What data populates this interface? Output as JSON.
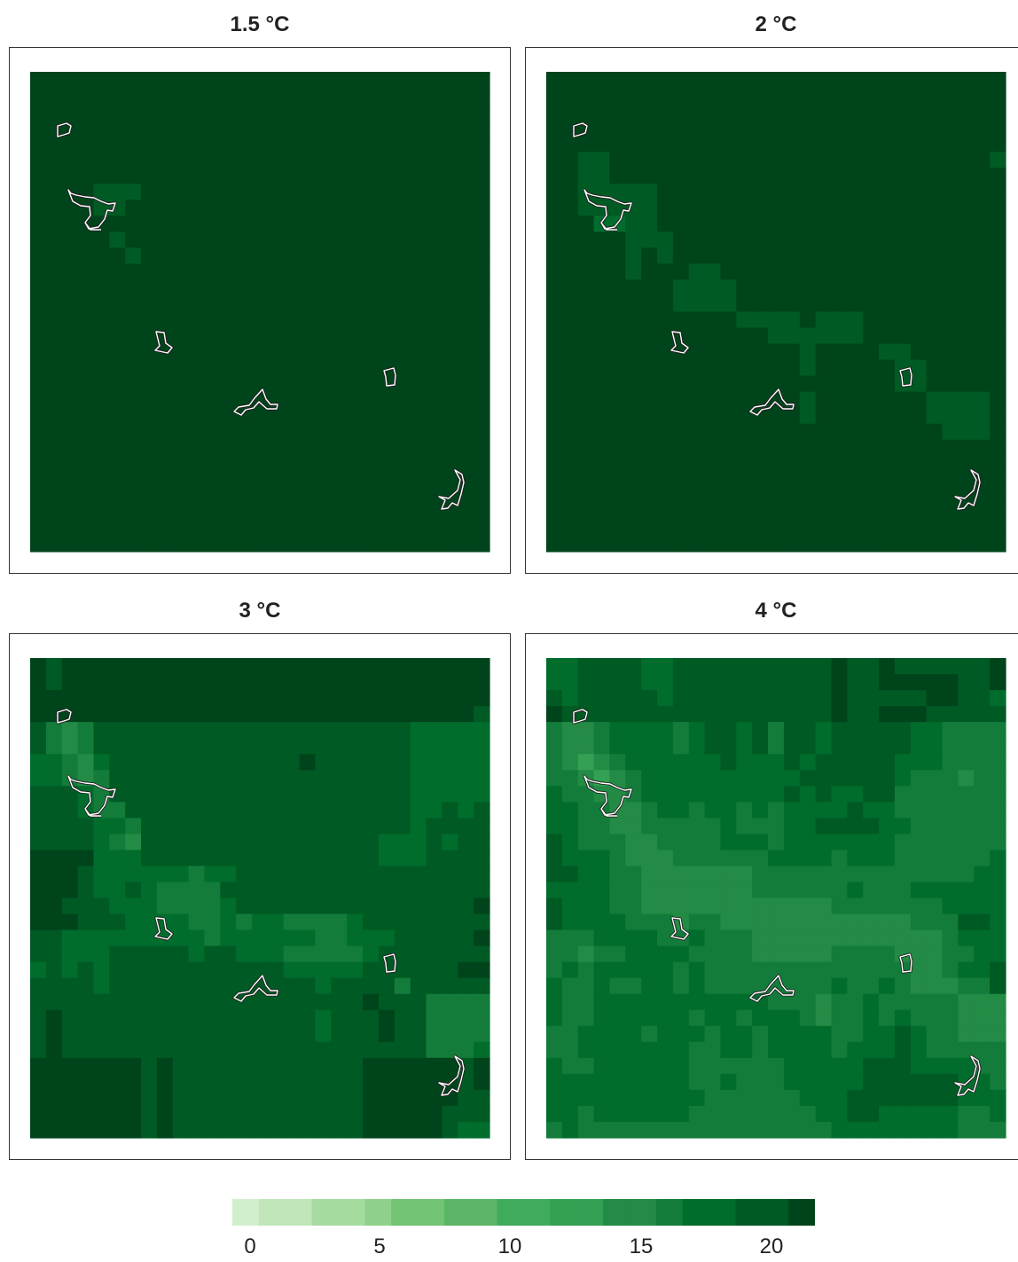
{
  "chart_data": {
    "type": "heatmap",
    "panels": [
      {
        "title": "1.5 °C",
        "grid": [
          "22 22 22 22 22 22 22 22 22 22 22 22 22 22 22 22 22 22 22 22 22 22 22 22 22 22 22 22 22",
          "22 22 22 22 22 22 22 22 22 22 22 22 22 22 22 22 22 22 22 22 22 22 22 22 22 22 22 22 22",
          "22 22 22 22 22 22 22 22 22 22 22 22 22 22 22 22 22 22 22 22 22 22 22 22 22 22 22 22 22",
          "22 22 22 22 22 22 22 22 22 22 22 22 22 22 22 22 22 22 22 22 22 22 22 22 22 22 22 22 22",
          "22 22 22 22 22 22 22 22 22 22 22 22 22 22 22 22 22 22 22 22 22 22 22 22 22 22 22 22 22",
          "22 22 22 22 22 22 22 22 22 22 22 22 22 22 22 22 22 22 22 22 22 22 22 22 22 22 22 22 22",
          "22 22 22 22 22 22 22 22 22 22 22 22 22 22 22 22 22 22 22 22 22 22 22 22 22 22 22 22 22",
          "22 22 22 22 21 21 21 22 22 22 22 22 22 22 22 22 22 22 22 22 22 22 22 22 22 22 22 22 22",
          "22 22 22 22 21 21 22 22 22 22 22 22 22 22 22 22 22 22 22 22 22 22 22 22 22 22 22 22 22",
          "22 22 22 22 22 22 22 22 22 22 22 22 22 22 22 22 22 22 22 22 22 22 22 22 22 22 22 22 22",
          "22 22 22 22 22 21 22 22 22 22 22 22 22 22 22 22 22 22 22 22 22 22 22 22 22 22 22 22 22",
          "22 22 22 22 22 22 21 22 22 22 22 22 22 22 22 22 22 22 22 22 22 22 22 22 22 22 22 22 22",
          "22 22 22 22 22 22 22 22 22 22 22 22 22 22 22 22 22 22 22 22 22 22 22 22 22 22 22 22 22",
          "22 22 22 22 22 22 22 22 22 22 22 22 22 22 22 22 22 22 22 22 22 22 22 22 22 22 22 22 22",
          "22 22 22 22 22 22 22 22 22 22 22 22 22 22 22 22 22 22 22 22 22 22 22 22 22 22 22 22 22",
          "22 22 22 22 22 22 22 22 22 22 22 22 22 22 22 22 22 22 22 22 22 22 22 22 22 22 22 22 22",
          "22 22 22 22 22 22 22 22 22 22 22 22 22 22 22 22 22 22 22 22 22 22 22 22 22 22 22 22 22",
          "22 22 22 22 22 22 22 22 22 22 22 22 22 22 22 22 22 22 22 22 22 22 22 22 22 22 22 22 22",
          "22 22 22 22 22 22 22 22 22 22 22 22 22 22 22 22 22 22 22 22 22 22 22 22 22 22 22 22 22",
          "22 22 22 22 22 22 22 22 22 22 22 22 22 22 22 22 22 22 22 22 22 22 22 22 22 22 22 22 22",
          "22 22 22 22 22 22 22 22 22 22 22 22 22 22 22 22 22 22 22 22 22 22 22 22 22 22 22 22 22",
          "22 22 22 22 22 22 22 22 22 22 22 22 22 22 22 22 22 22 22 22 22 22 22 22 22 22 22 22 22",
          "22 22 22 22 22 22 22 22 22 22 22 22 22 22 22 22 22 22 22 22 22 22 22 22 22 22 22 22 22",
          "22 22 22 22 22 22 22 22 22 22 22 22 22 22 22 22 22 22 22 22 22 22 22 22 22 22 22 22 22",
          "22 22 22 22 22 22 22 22 22 22 22 22 22 22 22 22 22 22 22 22 22 22 22 22 22 22 22 22 22",
          "22 22 22 22 22 22 22 22 22 22 22 22 22 22 22 22 22 22 22 22 22 22 22 22 22 22 22 22 22",
          "22 22 22 22 22 22 22 22 22 22 22 22 22 22 22 22 22 22 22 22 22 22 22 22 22 22 22 22 22",
          "22 22 22 22 22 22 22 22 22 22 22 22 22 22 22 22 22 22 22 22 22 22 22 22 22 22 22 22 22",
          "22 22 22 22 22 22 22 22 22 22 22 22 22 22 22 22 22 22 22 22 22 22 22 22 22 22 22 22 22",
          "22 22 22 22 22 22 22 22 22 22 22 22 22 22 22 22 22 22 22 22 22 22 22 22 22 22 22 22 22"
        ]
      },
      {
        "title": "2 °C",
        "grid": [
          "22 22 22 22 22 22 22 22 22 22 22 22 22 22 22 22 22 22 22 22 22 22 22 22 22 22 22 22 22",
          "22 22 22 22 22 22 22 22 22 22 22 22 22 22 22 22 22 22 22 22 22 22 22 22 22 22 22 22 22",
          "22 22 22 22 22 22 22 22 22 22 22 22 22 22 22 22 22 22 22 22 22 22 22 22 22 22 22 22 22",
          "22 22 22 22 22 22 22 22 22 22 22 22 22 22 22 22 22 22 22 22 22 22 22 22 22 22 22 22 22",
          "22 22 22 22 22 22 22 22 22 22 22 22 22 22 22 22 22 22 22 22 22 22 22 22 22 22 22 22 22",
          "22 22 20 21 22 22 22 22 22 22 22 22 22 22 22 22 22 22 22 22 22 22 22 22 22 22 22 22 21",
          "22 22 20 21 22 22 22 22 22 22 22 22 22 22 22 22 22 22 22 22 22 22 22 22 22 22 22 22 22",
          "22 22 20 20 20 20 21 22 22 22 22 22 22 22 22 22 22 22 22 22 22 22 22 22 22 22 22 22 22",
          "22 22 20 20 20 20 21 22 22 22 22 22 22 22 22 22 22 22 22 22 22 22 22 22 22 22 22 22 22",
          "22 22 22 19 19 20 21 22 22 22 22 22 22 22 22 22 22 22 22 22 22 22 22 22 22 22 22 22 22",
          "22 22 22 22 22 21 21 21 22 22 22 22 22 22 22 22 22 22 22 22 22 22 22 22 22 22 22 22 22",
          "22 22 22 22 22 21 22 21 22 22 22 22 22 22 22 22 22 22 22 22 22 22 22 22 22 22 22 22 22",
          "22 22 22 22 22 21 22 22 22 21 21 22 22 22 22 22 22 22 22 22 22 22 22 22 22 22 22 22 22",
          "22 22 22 22 22 22 22 22 21 21 21 21 22 22 22 22 22 22 22 22 22 22 22 22 22 22 22 22 22",
          "22 22 22 22 22 22 22 22 21 21 21 21 22 22 22 22 22 22 22 22 22 22 22 22 22 22 22 22 22",
          "22 22 22 22 22 22 22 22 22 22 22 22 21 21 21 21 22 21 21 21 22 22 22 22 22 22 22 22 22",
          "22 22 22 22 22 22 22 22 22 22 22 22 22 22 21 21 21 21 21 21 22 22 22 22 22 22 22 22 22",
          "22 22 22 22 22 22 22 22 22 22 22 22 22 22 22 22 21 22 22 22 22 21 21 22 22 22 22 22 22",
          "22 22 22 22 22 22 22 22 22 22 22 22 22 22 22 22 21 22 22 22 22 22 21 21 22 22 22 22 22",
          "22 22 22 22 22 22 22 22 22 22 22 22 22 22 22 22 22 22 22 22 22 22 21 21 22 22 22 22 22",
          "22 22 22 22 22 22 22 22 22 22 22 22 22 22 22 22 21 22 22 22 22 22 22 22 21 21 21 21 22",
          "22 22 22 22 22 22 22 22 22 22 22 22 22 22 22 22 21 22 22 22 22 22 22 22 21 21 21 21 22",
          "22 22 22 22 22 22 22 22 22 22 22 22 22 22 22 22 22 22 22 22 22 22 22 22 22 21 21 21 22",
          "22 22 22 22 22 22 22 22 22 22 22 22 22 22 22 22 22 22 22 22 22 22 22 22 22 22 22 22 22",
          "22 22 22 22 22 22 22 22 22 22 22 22 22 22 22 22 22 22 22 22 22 22 22 22 22 22 22 22 22",
          "22 22 22 22 22 22 22 22 22 22 22 22 22 22 22 22 22 22 22 22 22 22 22 22 22 22 22 22 22",
          "22 22 22 22 22 22 22 22 22 22 22 22 22 22 22 22 22 22 22 22 22 22 22 22 22 22 22 22 22",
          "22 22 22 22 22 22 22 22 22 22 22 22 22 22 22 22 22 22 22 22 22 22 22 22 22 22 22 22 22",
          "22 22 22 22 22 22 22 22 22 22 22 22 22 22 22 22 22 22 22 22 22 22 22 22 22 22 22 22 22",
          "22 22 22 22 22 22 22 22 22 22 22 22 22 22 22 22 22 22 22 22 22 22 22 22 22 22 22 22 22"
        ]
      },
      {
        "title": "3 °C",
        "grid": [
          "22 21 22 22 22 22 22 22 22 22 22 22 22 22 22 22 22 22 22 22 22 22 22 22 22 22 22 22 22",
          "22 21 22 22 22 22 22 22 22 22 22 22 22 22 22 22 22 22 22 22 22 22 22 22 22 22 22 22 22",
          "22 22 22 22 22 22 22 22 22 22 22 22 22 22 22 22 22 22 22 22 22 22 22 22 22 22 22 22 22",
          "22 22 22 22 22 22 22 22 22 22 22 22 22 22 22 22 22 22 22 22 22 22 22 22 22 22 22 22 21",
          "20 17 15 16 21 21 20 21 21 21 21 21 21 21 20 21 21 21 20 21 21 21 21 20 19 19 19 18 18",
          "20 17 15 16 21 21 20 21 21 21 21 21 21 21 20 21 21 21 20 21 21 21 21 20 19 19 19 18 18",
          "19 18 17 15 18 20 21 20 21 21 21 21 21 21 21 21 21 22 21 21 21 21 21 20 18 18 18 18 19",
          "19 19 17 14 17 20 21 21 21 21 21 21 21 21 21 21 21 21 21 21 21 21 21 20 18 18 18 18 19",
          "21 21 20 18 17 20 21 21 21 20 21 20 21 21 21 21 21 21 21 21 21 21 21 21 19 18 19 18 19",
          "21 20 20 19 17 17 20 21 21 21 20 20 20 21 21 21 21 21 21 21 21 21 21 21 19 19 20 19 20",
          "21 20 20 20 19 18 17 20 20 20 20 20 21 21 21 21 21 21 21 21 21 21 21 21 19 20 20 20 20",
          "21 21 20 20 19 17 15 20 20 20 20 20 21 21 21 21 21 21 21 21 21 20 19 19 19 20 19 20 20",
          "22 22 22 22 19 18 19 21 21 21 21 21 21 21 21 21 21 21 21 21 21 20 19 19 19 21 20 20 20",
          "22 22 22 21 18 18 18 19 18 19 17 18 19 21 21 21 21 21 21 21 21 21 21 21 21 21 21 20 20",
          "22 22 22 21 18 19 20 18 16 16 16 17 20 21 21 21 21 21 21 21 21 21 21 21 20 21 20 21 21",
          "22 22 21 21 20 19 19 19 16 16 16 16 19 20 20 20 20 20 20 21 21 20 21 21 21 21 21 21 22",
          "22 22 22 21 20 20 19 18 19 19 17 17 18 17 18 18 17 17 17 17 18 20 21 21 20 21 21 21 21",
          "20 20 19 19 19 19 19 18 19 19 18 17 18 18 19 18 18 18 17 17 19 18 18 20 20 20 20 21 22",
          "20 20 18 19 18 21 21 21 21 21 19 21 21 19 19 18 17 17 17 17 17 19 20 21 20 21 21 21 21",
          "19 20 19 20 18 21 21 21 21 21 21 21 21 20 21 20 19 19 18 19 19 20 20 21 21 21 21 22 22",
          "20 20 20 20 19 20 21 21 21 21 21 20 21 20 21 21 21 20 19 21 21 21 20 17 20 21 21 21 21",
          "20 21 20 20 21 21 21 21 21 21 20 21 21 21 20 21 21 20 20 21 21 22 21 20 21 17 17 17 17",
          "21 22 21 21 21 21 21 21 21 21 21 21 21 21 21 21 21 21 19 20 21 21 22 21 21 17 17 17 17",
          "21 22 21 21 21 21 21 21 21 21 21 21 21 21 21 21 21 21 19 20 21 21 22 21 21 17 17 17 17",
          "21 22 21 21 21 21 21 21 21 21 21 21 21 21 21 21 21 21 21 21 21 21 21 21 21 17 17 17 18",
          "22 22 22 22 22 22 22 21 22 21 21 21 21 20 21 21 21 21 21 21 21 22 22 22 22 22 22 21 22",
          "22 22 22 22 22 22 22 21 22 21 21 21 21 20 21 21 21 21 21 21 21 22 22 22 22 22 22 21 22",
          "22 22 22 22 22 22 22 21 22 21 21 21 21 20 21 21 21 21 21 21 21 22 22 22 22 22 22 21 21",
          "22 22 22 22 22 22 22 21 22 21 21 21 21 20 21 21 21 21 21 21 21 22 22 22 22 22 21 20 20",
          "22 22 22 22 22 22 22 21 22 21 21 21 21 20 21 21 21 21 21 21 21 22 22 22 22 22 20 19 19"
        ]
      },
      {
        "title": "4 °C",
        "grid": [
          "19 19 21 20 20 21 19 19 20 21 21 21 20 21 21 21 20 21 22 21 21 22 21 21 21 21 21 21 22",
          "19 19 21 20 21 21 19 19 20 21 21 21 20 21 21 21 20 21 22 21 21 22 22 22 22 22 21 21 22",
          "20 19 20 20 21 21 20 19 20 21 21 21 20 21 21 21 20 21 22 21 21 21 21 21 22 22 21 20 19",
          "22 21 20 20 20 21 21 21 21 21 21 21 21 21 21 21 20 21 22 21 21 22 22 22 21 21 21 20 20",
          "16 15 14 16 19 18 19 18 17 19 20 20 19 20 17 20 20 19 20 21 21 20 20 19 18 16 16 17 17",
          "16 15 14 16 19 18 19 18 17 19 20 20 19 20 17 20 20 19 20 21 21 20 20 19 18 16 16 17 17",
          "16 15 13 14 17 19 19 19 19 19 19 20 18 18 19 20 19 20 21 21 21 20 18 18 18 16 16 16 16",
          "17 16 14 13 15 17 18 18 18 19 19 18 18 18 18 19 20 20 20 20 21 20 19 17 16 16 15 16 17",
          "18 17 16 14 15 17 19 18 19 19 19 19 19 19 19 20 19 20 19 18 20 20 17 16 16 16 16 16 17",
          "18 18 17 16 14 15 17 18 18 17 18 18 17 18 17 18 19 19 19 20 19 18 16 16 16 16 17 17 16",
          "19 18 17 17 15 15 16 17 17 17 17 18 17 16 16 19 19 21 21 21 21 19 18 17 17 17 17 17 16",
          "20 19 17 17 16 14 14 17 17 17 17 18 18 18 16 19 18 18 18 18 18 18 16 16 16 17 17 17 17",
          "21 19 19 18 16 14 14 15 16 17 17 16 16 16 18 18 18 18 17 18 18 18 17 16 16 16 17 17 18",
          "20 20 18 18 17 16 15 15 14 14 14 15 15 17 16 17 17 16 17 16 16 17 17 17 17 17 17 18 18",
          "19 19 18 18 17 16 15 15 14 14 14 14 15 16 17 17 17 17 17 18 17 17 17 18 18 18 18 18 18",
          "20 19 19 19 17 16 15 15 14 14 14 14 15 15 15 15 15 15 16 17 17 17 17 17 17 18 18 18 18",
          "20 19 18 19 18 16 16 16 15 16 16 15 15 15 15 14 14 15 15 15 15 14 15 16 16 17 20 20 19",
          "16 16 17 18 18 18 18 17 17 18 17 16 16 15 15 14 14 15 15 15 15 15 14 14 15 17 19 19 19",
          "16 17 15 16 17 18 18 18 18 17 17 16 16 15 15 15 15 15 16 16 16 16 14 14 15 16 17 18 18",
          "17 18 17 18 18 18 18 18 17 18 17 17 16 17 16 16 16 16 16 17 17 16 16 15 14 16 18 18 20",
          "18 17 17 18 17 17 18 18 17 18 17 17 17 17 17 16 17 16 18 17 17 18 16 15 15 15 17 17 20",
          "18 17 17 18 18 18 18 18 18 18 18 18 18 18 17 17 17 15 16 17 19 17 17 17 16 16 15 14 15",
          "18 17 17 18 18 18 18 18 18 17 18 18 17 18 18 18 17 15 16 17 19 17 18 17 16 16 15 14 15",
          "17 17 18 19 18 18 17 18 18 18 16 18 18 17 18 18 18 18 16 17 18 18 20 18 17 16 15 15 15",
          "17 17 18 19 18 18 18 18 18 17 16 18 18 17 18 18 18 18 17 18 18 19 20 19 17 17 16 16 16",
          "18 17 17 18 18 18 18 18 18 17 16 17 16 17 16 18 18 18 18 18 20 20 20 19 18 18 18 17 17",
          "18 18 18 18 18 18 18 18 18 17 16 18 16 16 16 18 18 18 18 19 21 21 21 21 21 20 18 18 17",
          "18 18 18 18 18 18 18 18 19 19 17 16 17 16 16 17 18 18 18 20 21 21 21 21 21 21 18 18 18",
          "18 18 17 18 18 19 18 19 18 17 17 17 16 16 16 17 17 18 19 20 20 19 19 19 19 18 17 17 18",
          "17 18 17 17 17 17 17 17 17 16 17 16 17 16 17 17 17 17 18 19 19 19 18 18 18 18 17 16 16"
        ]
      }
    ],
    "grid_shape": [
      29,
      30
    ],
    "value_range": [
      0,
      22
    ],
    "colorbar": {
      "min": 0,
      "max": 22,
      "ticks": [
        "0",
        "5",
        "10",
        "15",
        "20"
      ],
      "tick_values": [
        0,
        5,
        10,
        15,
        20
      ],
      "placement": "bottom",
      "orientation": "horizontal"
    },
    "colorscale": [
      "#d2efcd",
      "#c0e6b9",
      "#a6dba0",
      "#8fd18a",
      "#74c476",
      "#5bb566",
      "#41ab5d",
      "#33a054",
      "#238b45",
      "#137c3b",
      "#006d2c",
      "#005a24",
      "#00441b"
    ],
    "outline_color": "#ffffff",
    "grid": "off"
  }
}
